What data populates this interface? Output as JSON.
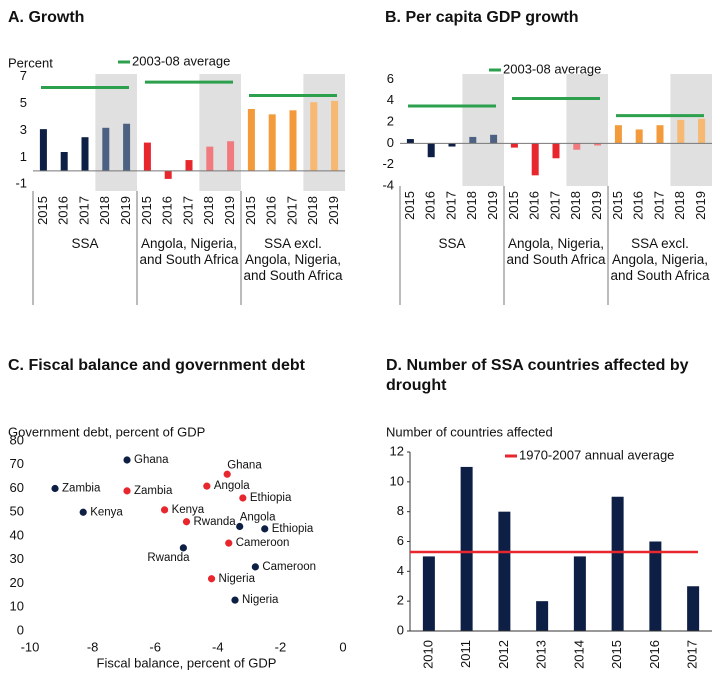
{
  "chart_data": [
    {
      "type": "bar",
      "title": "A. Growth",
      "y_label": "Percent",
      "legend": "2003-08 average",
      "average_color": "#2ca04c",
      "shade_color": "#e0e0e0",
      "projection_years": [
        "2018",
        "2019"
      ],
      "ylim": [
        -1.5,
        7.2
      ],
      "yticks": [
        -1,
        1,
        3,
        5,
        7
      ],
      "groups": [
        {
          "name": "SSA",
          "color": "#0d1f44",
          "projection_color": "#4d6282",
          "categories": [
            "2015",
            "2016",
            "2017",
            "2018",
            "2019"
          ],
          "values": [
            3.1,
            1.4,
            2.5,
            3.2,
            3.5
          ],
          "average": 6.2
        },
        {
          "name": "Angola, Nigeria, and South Africa",
          "color": "#e8262d",
          "projection_color": "#f07a7e",
          "categories": [
            "2015",
            "2016",
            "2017",
            "2018",
            "2019"
          ],
          "values": [
            2.1,
            -0.6,
            0.8,
            1.8,
            2.2
          ],
          "average": 6.6
        },
        {
          "name": "SSA excl. Angola, Nigeria, and South Africa",
          "color": "#f39a3b",
          "projection_color": "#f7b872",
          "categories": [
            "2015",
            "2016",
            "2017",
            "2018",
            "2019"
          ],
          "values": [
            4.6,
            4.2,
            4.5,
            5.1,
            5.2
          ],
          "average": 5.6
        }
      ]
    },
    {
      "type": "bar",
      "title": "B. Per capita GDP growth",
      "legend": "2003-08 average",
      "average_color": "#2ca04c",
      "shade_color": "#e0e0e0",
      "projection_years": [
        "2018",
        "2019"
      ],
      "ylim": [
        -4,
        6.5
      ],
      "yticks": [
        -4,
        -2,
        0,
        2,
        4,
        6
      ],
      "groups": [
        {
          "name": "SSA",
          "color": "#0d1f44",
          "projection_color": "#4d6282",
          "categories": [
            "2015",
            "2016",
            "2017",
            "2018",
            "2019"
          ],
          "values": [
            0.4,
            -1.3,
            -0.3,
            0.6,
            0.8
          ],
          "average": 3.5
        },
        {
          "name": "Angola, Nigeria, and South Africa",
          "color": "#e8262d",
          "projection_color": "#f07a7e",
          "categories": [
            "2015",
            "2016",
            "2017",
            "2018",
            "2019"
          ],
          "values": [
            -0.4,
            -3.0,
            -1.4,
            -0.6,
            -0.2
          ],
          "average": 4.2
        },
        {
          "name": "SSA excl. Angola, Nigeria, and South Africa",
          "color": "#f39a3b",
          "projection_color": "#f7b872",
          "categories": [
            "2015",
            "2016",
            "2017",
            "2018",
            "2019"
          ],
          "values": [
            1.7,
            1.3,
            1.7,
            2.2,
            2.3
          ],
          "average": 2.6
        }
      ]
    },
    {
      "type": "scatter",
      "title": "C. Fiscal balance and government debt",
      "y_label": "Government debt, percent of GDP",
      "x_label": "Fiscal balance, percent of GDP",
      "xlim": [
        -10,
        0
      ],
      "xticks": [
        -10,
        -8,
        -6,
        -4,
        -2,
        0
      ],
      "ylim": [
        0,
        80
      ],
      "yticks": [
        0,
        10,
        20,
        30,
        40,
        50,
        60,
        70,
        80
      ],
      "series": [
        {
          "color": "#0d1f44",
          "labels": [
            "Ghana",
            "Zambia",
            "Kenya",
            "Rwanda",
            "Angola",
            "Ethiopia",
            "Cameroon",
            "Nigeria"
          ],
          "x": [
            -6.9,
            -9.2,
            -8.3,
            -5.1,
            -3.3,
            -2.5,
            -2.8,
            -3.45
          ],
          "y": [
            72,
            60,
            50,
            35,
            44,
            43,
            27,
            13
          ]
        },
        {
          "color": "#e8262d",
          "labels": [
            "Ghana",
            "Angola",
            "Zambia",
            "Ethiopia",
            "Kenya",
            "Rwanda",
            "Cameroon",
            "Nigeria"
          ],
          "x": [
            -3.7,
            -4.35,
            -6.9,
            -3.2,
            -5.7,
            -5.0,
            -3.65,
            -4.2
          ],
          "y": [
            66,
            61,
            59,
            56,
            51,
            46,
            37,
            22
          ]
        }
      ]
    },
    {
      "type": "bar",
      "title": "D. Number of SSA countries affected by drought",
      "y_label": "Number of countries affected",
      "legend": "1970-2007 annual average",
      "color": "#0d1f44",
      "average_color": "#e8262d",
      "categories": [
        "2010",
        "2011",
        "2012",
        "2013",
        "2014",
        "2015",
        "2016",
        "2017"
      ],
      "values": [
        5,
        11,
        8,
        2,
        5,
        9,
        6,
        3
      ],
      "average": 5.3,
      "ylim": [
        0,
        12
      ],
      "yticks": [
        0,
        2,
        4,
        6,
        8,
        10,
        12
      ]
    }
  ]
}
